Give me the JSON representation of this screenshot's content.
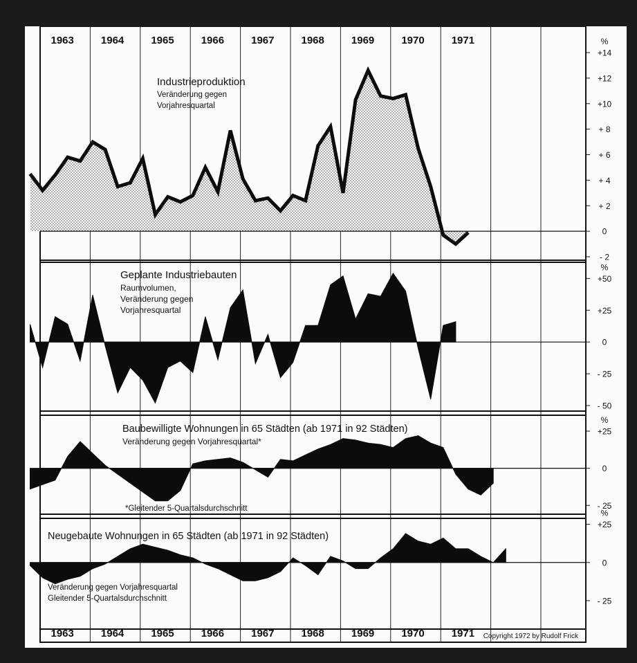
{
  "years": [
    "1963",
    "1964",
    "1965",
    "1966",
    "1967",
    "1968",
    "1969",
    "1970",
    "1971"
  ],
  "copyright": "Copyright 1972 by Rudolf Frick",
  "chart_data": [
    {
      "type": "area",
      "title": "Industrieproduktion",
      "subtitle": [
        "Veränderung gegen",
        "Vorjahresquartal"
      ],
      "unit": "%",
      "y_tick_labels": [
        "+14",
        "+12",
        "+10",
        "+ 8",
        "+ 6",
        "+ 4",
        "+ 2",
        "0",
        "- 2"
      ],
      "y_tick_values": [
        14,
        12,
        10,
        8,
        6,
        4,
        2,
        0,
        -2
      ],
      "ylim": [
        -2,
        14
      ],
      "x_start": 1962.8,
      "values": [
        4.5,
        3.2,
        4.4,
        5.8,
        5.5,
        7.0,
        6.4,
        3.5,
        3.8,
        5.7,
        1.3,
        2.7,
        2.3,
        2.8,
        5.0,
        3.1,
        7.9,
        4.1,
        2.4,
        2.6,
        1.6,
        2.8,
        2.4,
        6.7,
        8.2,
        3.0,
        10.3,
        12.6,
        10.6,
        10.4,
        10.7,
        6.5,
        3.5,
        -0.3,
        -1.0,
        -0.1
      ]
    },
    {
      "type": "area",
      "title": "Geplante Industriebauten",
      "subtitle": [
        "Raumvolumen,",
        "Veränderung gegen",
        "Vorjahresquartal"
      ],
      "unit": "%",
      "y_tick_labels": [
        "+50",
        "+25",
        "0",
        "- 25",
        "- 50"
      ],
      "y_tick_values": [
        50,
        25,
        0,
        -25,
        -50
      ],
      "ylim": [
        -50,
        60
      ],
      "x_start": 1962.8,
      "values": [
        14,
        -20,
        20,
        14,
        -15,
        37,
        -3,
        -40,
        -20,
        -30,
        -48,
        -20,
        -15,
        -24,
        20,
        -14,
        27,
        41,
        -17,
        6,
        -28,
        -16,
        13,
        13,
        45,
        52,
        18,
        38,
        36,
        54,
        40,
        -5,
        -45,
        13,
        16
      ]
    },
    {
      "type": "area",
      "title": "Baubewilligte Wohnungen in 65 Städten (ab 1971 in 92 Städten)",
      "subtitle": [
        "Veränderung gegen Vorjahresquartal*"
      ],
      "footnote": "*Gleitender 5-Quartalsdurchschnitt",
      "unit": "%",
      "y_tick_labels": [
        "+25",
        "0",
        "- 25"
      ],
      "y_tick_values": [
        25,
        0,
        -25
      ],
      "ylim": [
        -30,
        32
      ],
      "x_start": 1962.8,
      "values": [
        -14,
        -11,
        -8,
        8,
        18,
        10,
        2,
        -4,
        -10,
        -16,
        -22,
        -22,
        -15,
        3,
        5,
        6,
        7,
        4,
        -1,
        -6,
        6,
        5,
        9,
        13,
        16,
        20,
        19,
        17,
        16,
        14,
        20,
        22,
        17,
        14,
        -4,
        -14,
        -18,
        -10
      ]
    },
    {
      "type": "area",
      "title": "Neugebaute Wohnungen in 65 Städten (ab 1971 in 92 Städten)",
      "subtitle": [
        "Veränderung gegen Vorjahresquartal",
        "Gleitender 5-Quartalsdurchschnitt"
      ],
      "unit": "%",
      "y_tick_labels": [
        "+25",
        "0",
        "- 25"
      ],
      "y_tick_values": [
        25,
        0,
        -25
      ],
      "ylim": [
        -40,
        28
      ],
      "x_start": 1962.8,
      "values": [
        -2,
        -10,
        -14,
        -11,
        -9,
        -4,
        -1,
        4,
        9,
        12,
        10,
        8,
        5,
        3,
        -1,
        -4,
        -8,
        -12,
        -12,
        -10,
        -6,
        3,
        -2,
        -8,
        4,
        1,
        -4,
        -4,
        3,
        9,
        19,
        14,
        12,
        16,
        9,
        9,
        4,
        0,
        9
      ]
    }
  ]
}
